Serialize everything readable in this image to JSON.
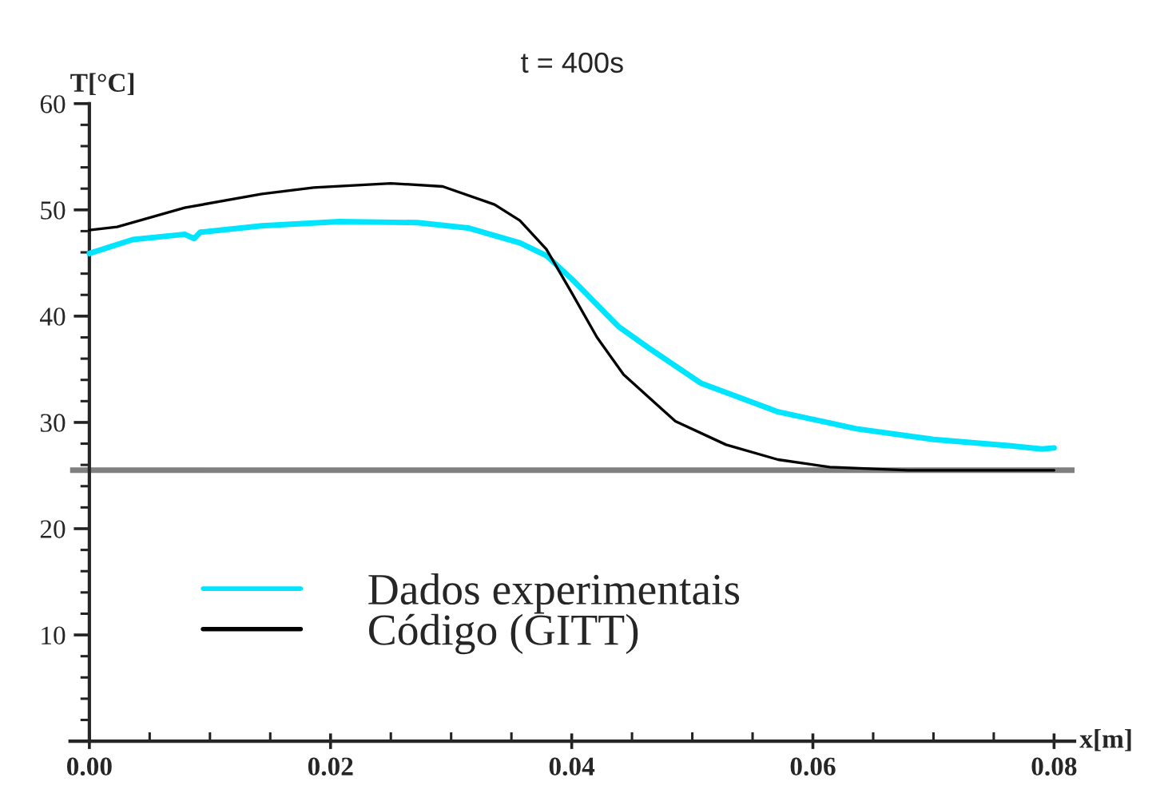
{
  "chart_data": {
    "type": "line",
    "title": "t = 400s",
    "xlabel": "x[m]",
    "ylabel": "T[°C]",
    "xlim": [
      -0.0016,
      0.0817
    ],
    "ylim": [
      0,
      60
    ],
    "xticks": [
      {
        "value": 0,
        "label": "0.00"
      },
      {
        "value": 0.005,
        "label": null
      },
      {
        "value": 0.01,
        "label": null
      },
      {
        "value": 0.015,
        "label": null
      },
      {
        "value": 0.02,
        "label": "0.02"
      },
      {
        "value": 0.025,
        "label": null
      },
      {
        "value": 0.03,
        "label": null
      },
      {
        "value": 0.035,
        "label": null
      },
      {
        "value": 0.04,
        "label": "0.04"
      },
      {
        "value": 0.045,
        "label": null
      },
      {
        "value": 0.05,
        "label": null
      },
      {
        "value": 0.055,
        "label": null
      },
      {
        "value": 0.06,
        "label": "0.06"
      },
      {
        "value": 0.065,
        "label": null
      },
      {
        "value": 0.07,
        "label": null
      },
      {
        "value": 0.075,
        "label": null
      },
      {
        "value": 0.08,
        "label": "0.08"
      }
    ],
    "yticks": [
      {
        "value": 2,
        "label": null
      },
      {
        "value": 4,
        "label": null
      },
      {
        "value": 6,
        "label": null
      },
      {
        "value": 8,
        "label": null
      },
      10,
      {
        "value": 12,
        "label": null
      },
      {
        "value": 14,
        "label": null
      },
      {
        "value": 16,
        "label": null
      },
      {
        "value": 18,
        "label": null
      },
      20,
      {
        "value": 22,
        "label": null
      },
      {
        "value": 24,
        "label": null
      },
      {
        "value": 26,
        "label": null
      },
      {
        "value": 28,
        "label": null
      },
      30,
      {
        "value": 32,
        "label": null
      },
      {
        "value": 34,
        "label": null
      },
      {
        "value": 36,
        "label": null
      },
      {
        "value": 38,
        "label": null
      },
      40,
      {
        "value": 42,
        "label": null
      },
      {
        "value": 44,
        "label": null
      },
      {
        "value": 46,
        "label": null
      },
      {
        "value": 48,
        "label": null
      },
      50,
      {
        "value": 52,
        "label": null
      },
      {
        "value": 54,
        "label": null
      },
      {
        "value": 56,
        "label": null
      },
      {
        "value": 58,
        "label": null
      },
      60
    ],
    "grid": false,
    "legend": "bottom",
    "marker": "none",
    "line_style": "solid",
    "ref_lines": [
      {
        "axis": "y",
        "value": 25.5,
        "label": null,
        "color": "#808080"
      }
    ],
    "series": [
      {
        "name": "Dados experimentais",
        "color": "#00e5ff",
        "x": [
          0,
          0.0036,
          0.0079,
          0.0087,
          0.0092,
          0.0143,
          0.0207,
          0.0272,
          0.0314,
          0.0357,
          0.0379,
          0.04,
          0.0439,
          0.0464,
          0.0507,
          0.0571,
          0.0636,
          0.07,
          0.0764,
          0.079,
          0.08
        ],
        "values": [
          45.9,
          47.2,
          47.7,
          47.3,
          47.9,
          48.5,
          48.9,
          48.8,
          48.3,
          46.9,
          45.7,
          43.5,
          39.0,
          37.0,
          33.7,
          31.0,
          29.4,
          28.4,
          27.8,
          27.5,
          27.6
        ]
      },
      {
        "name": "Código (GITT)",
        "color": "#000000",
        "x": [
          0,
          0.0023,
          0.0079,
          0.0143,
          0.0186,
          0.025,
          0.0293,
          0.0336,
          0.0357,
          0.0379,
          0.04,
          0.0421,
          0.0443,
          0.0486,
          0.0528,
          0.0571,
          0.0614,
          0.0679,
          0.08
        ],
        "values": [
          48.1,
          48.4,
          50.2,
          51.5,
          52.1,
          52.5,
          52.2,
          50.5,
          49.0,
          46.3,
          42.2,
          38.0,
          34.5,
          30.1,
          27.9,
          26.5,
          25.8,
          25.5,
          25.5
        ]
      }
    ]
  }
}
